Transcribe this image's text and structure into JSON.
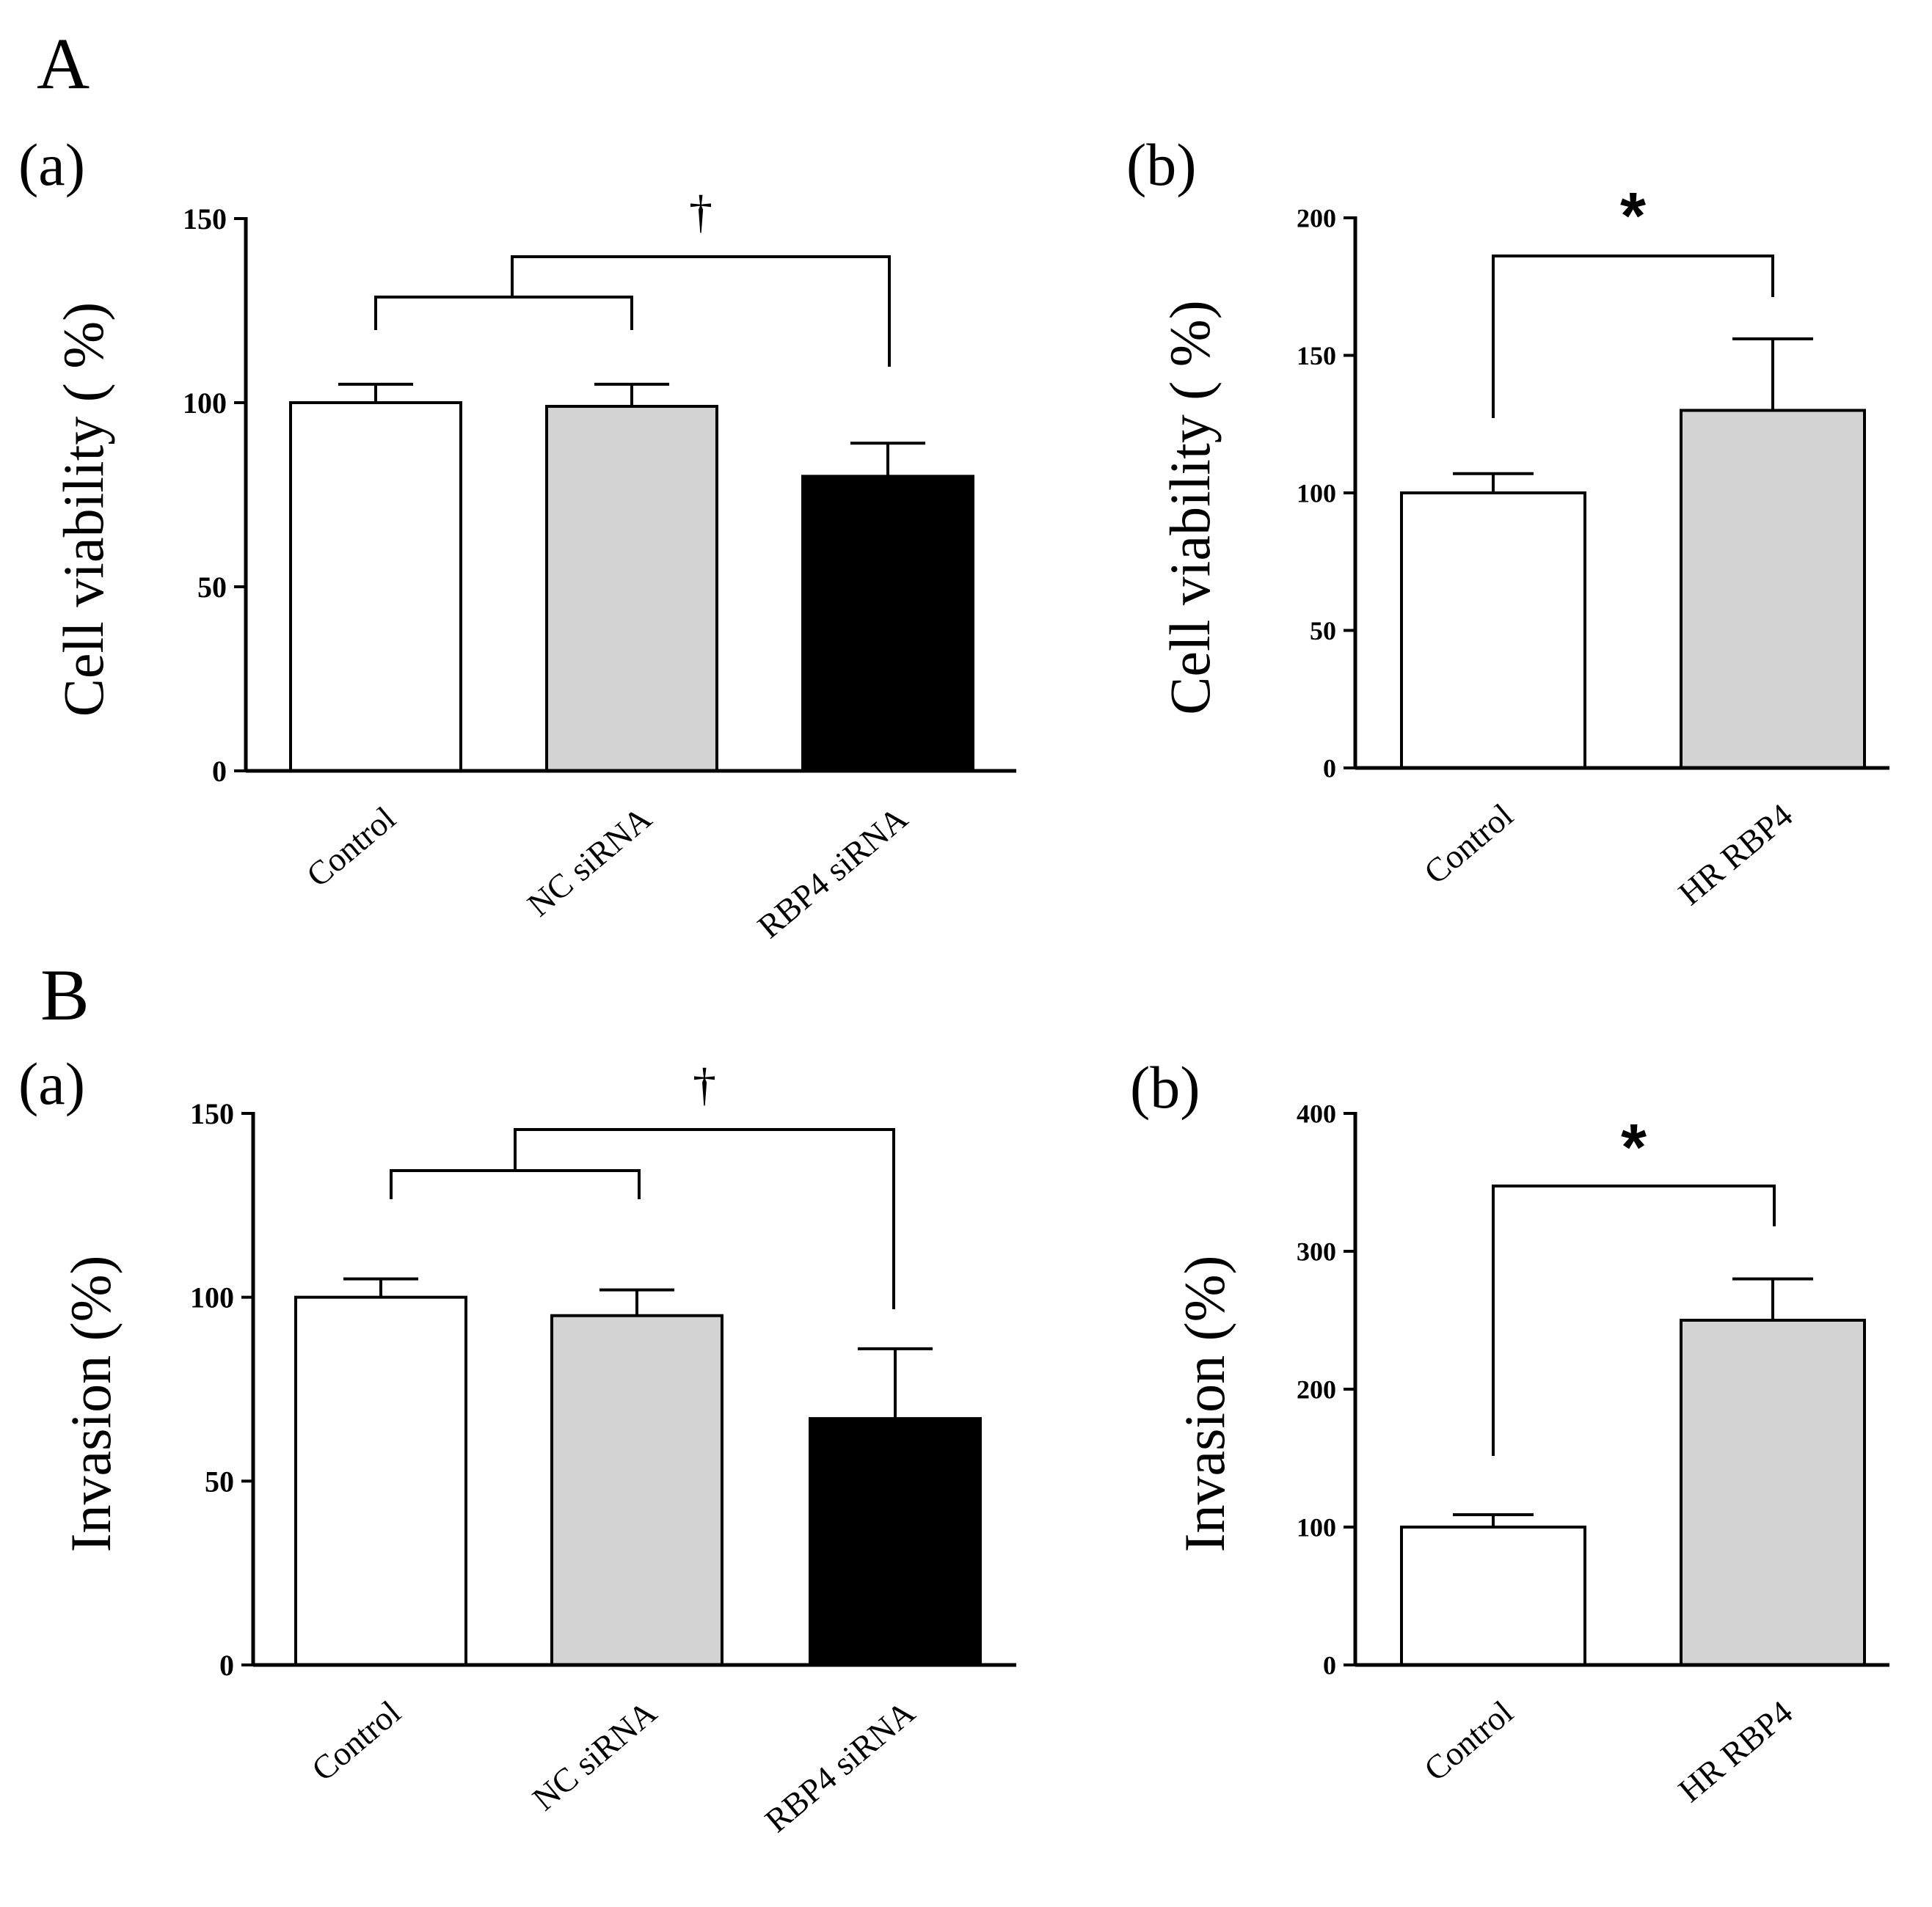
{
  "panels": {
    "A": {
      "label": "A"
    },
    "B": {
      "label": "B"
    }
  },
  "chart_data": [
    {
      "id": "A-a",
      "sublabel": "(a)",
      "type": "bar",
      "ylabel": "Cell viability ( %)",
      "ylim": [
        0,
        150
      ],
      "yticks": [
        0,
        50,
        100,
        150
      ],
      "categories": [
        "Control",
        "NC siRNA",
        "RBP4 siRNA"
      ],
      "values": [
        100,
        99,
        80
      ],
      "errors": [
        5,
        6,
        9
      ],
      "colors": [
        "#ffffff",
        "#d3d3d3",
        "#000000"
      ],
      "significance": {
        "symbol": "†",
        "comparison": "Control & NC siRNA vs RBP4 siRNA"
      }
    },
    {
      "id": "A-b",
      "sublabel": "(b)",
      "type": "bar",
      "ylabel": "Cell viability ( %)",
      "ylim": [
        0,
        200
      ],
      "yticks": [
        0,
        50,
        100,
        150,
        200
      ],
      "categories": [
        "Control",
        "HR RBP4"
      ],
      "values": [
        100,
        130
      ],
      "errors": [
        7,
        26
      ],
      "colors": [
        "#ffffff",
        "#d3d3d3"
      ],
      "significance": {
        "symbol": "*",
        "comparison": "Control vs HR RBP4"
      }
    },
    {
      "id": "B-a",
      "sublabel": "(a)",
      "type": "bar",
      "ylabel": "Invasion (%)",
      "ylim": [
        0,
        150
      ],
      "yticks": [
        0,
        50,
        100,
        150
      ],
      "categories": [
        "Control",
        "NC siRNA",
        "RBP4 siRNA"
      ],
      "values": [
        100,
        95,
        67
      ],
      "errors": [
        5,
        7,
        19
      ],
      "colors": [
        "#ffffff",
        "#d3d3d3",
        "#000000"
      ],
      "significance": {
        "symbol": "†",
        "comparison": "Control & NC siRNA vs RBP4 siRNA"
      }
    },
    {
      "id": "B-b",
      "sublabel": "(b)",
      "type": "bar",
      "ylabel": "Invasion (%)",
      "ylim": [
        0,
        400
      ],
      "yticks": [
        0,
        100,
        200,
        300,
        400
      ],
      "categories": [
        "Control",
        "HR RBP4"
      ],
      "values": [
        100,
        250
      ],
      "errors": [
        9,
        30
      ],
      "colors": [
        "#ffffff",
        "#d3d3d3"
      ],
      "significance": {
        "symbol": "*",
        "comparison": "Control vs HR RBP4"
      }
    }
  ]
}
